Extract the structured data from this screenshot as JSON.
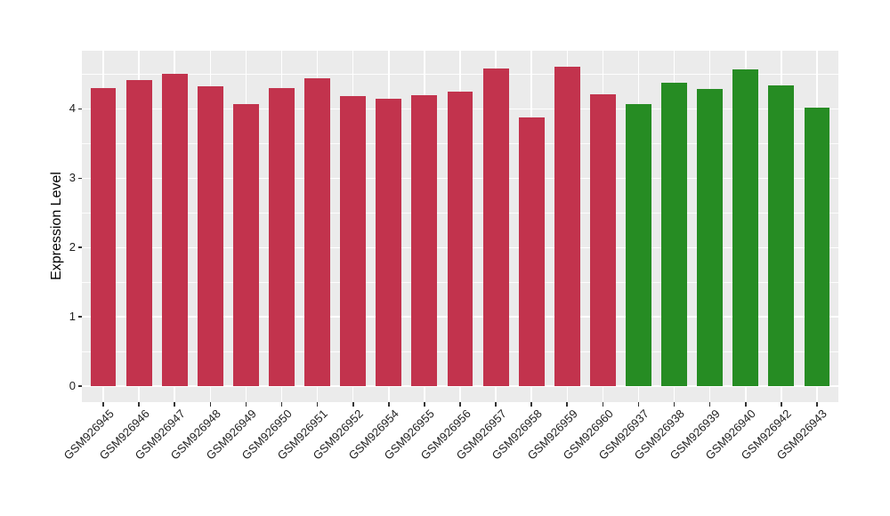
{
  "chart_data": {
    "type": "bar",
    "title": "",
    "xlabel": "",
    "ylabel": "Expression Level",
    "categories": [
      "GSM926945",
      "GSM926946",
      "GSM926947",
      "GSM926948",
      "GSM926949",
      "GSM926950",
      "GSM926951",
      "GSM926952",
      "GSM926954",
      "GSM926955",
      "GSM926956",
      "GSM926957",
      "GSM926958",
      "GSM926959",
      "GSM926960",
      "GSM926937",
      "GSM926938",
      "GSM926939",
      "GSM926940",
      "GSM926942",
      "GSM926943"
    ],
    "values": [
      4.3,
      4.42,
      4.5,
      4.33,
      4.07,
      4.3,
      4.44,
      4.19,
      4.15,
      4.2,
      4.25,
      4.58,
      3.88,
      4.61,
      4.21,
      4.07,
      4.38,
      4.29,
      4.57,
      4.34,
      4.02
    ],
    "bar_colors": [
      "#C2334D",
      "#C2334D",
      "#C2334D",
      "#C2334D",
      "#C2334D",
      "#C2334D",
      "#C2334D",
      "#C2334D",
      "#C2334D",
      "#C2334D",
      "#C2334D",
      "#C2334D",
      "#C2334D",
      "#C2334D",
      "#C2334D",
      "#268C23",
      "#268C23",
      "#268C23",
      "#268C23",
      "#268C23",
      "#268C23"
    ],
    "groups": [
      {
        "name": "group-red",
        "color": "#C2334D",
        "category_count": 15
      },
      {
        "name": "group-green",
        "color": "#268C23",
        "category_count": 6
      }
    ],
    "yticks": [
      0,
      1,
      2,
      3,
      4
    ],
    "ytick_labels": [
      "0",
      "1",
      "2",
      "3",
      "4"
    ],
    "yticks_minor": [
      0.5,
      1.5,
      2.5,
      3.5,
      4.5
    ],
    "ylim": [
      -0.23,
      4.84
    ],
    "legend": "none",
    "grid": "white major+minor horizontal, white major vertical at bar centers",
    "panel_bg": "#EBEBEB",
    "grid_color": "#FFFFFF",
    "tick_color": "#333333",
    "axis_text_color": "#1F1F1F",
    "axis_title_color": "#000000",
    "figure_bg": "#FFFFFF"
  }
}
